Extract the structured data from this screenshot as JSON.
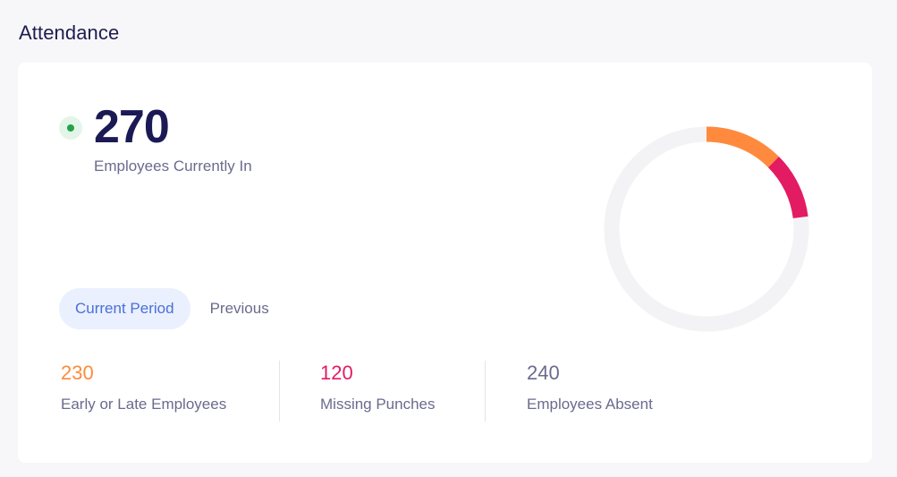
{
  "header": {
    "title": "Attendance"
  },
  "summary": {
    "count": "270",
    "label": "Employees Currently In",
    "status_color": "#22a34a"
  },
  "tabs": [
    {
      "label": "Current Period",
      "active": true
    },
    {
      "label": "Previous",
      "active": false
    }
  ],
  "stats": [
    {
      "value": "230",
      "label": "Early or Late Employees",
      "color": "#ff8a3d"
    },
    {
      "value": "120",
      "label": "Missing Punches",
      "color": "#e31b63"
    },
    {
      "value": "240",
      "label": "Employees Absent",
      "color": "#6b6a8e"
    }
  ],
  "donut": {
    "track_color": "#f3f3f5",
    "segments": [
      {
        "name": "Early or Late Employees",
        "fraction": 0.125,
        "color": "#ff8a3d"
      },
      {
        "name": "Missing Punches",
        "fraction": 0.105,
        "color": "#e31b63"
      }
    ]
  }
}
